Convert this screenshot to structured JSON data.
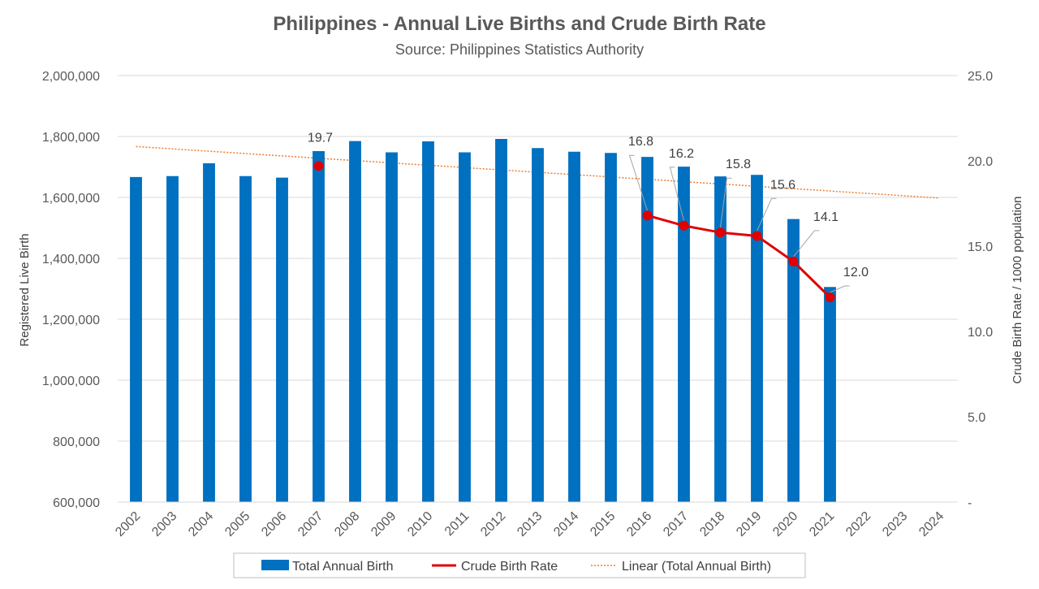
{
  "chart_data": {
    "type": "bar",
    "title": "Philippines - Annual Live Births and Crude Birth Rate",
    "subtitle": "Source: Philippines Statistics Authority",
    "categories": [
      "2002",
      "2003",
      "2004",
      "2005",
      "2006",
      "2007",
      "2008",
      "2009",
      "2010",
      "2011",
      "2012",
      "2013",
      "2014",
      "2015",
      "2016",
      "2017",
      "2018",
      "2019",
      "2020",
      "2021",
      "2022",
      "2023",
      "2024"
    ],
    "y_left": {
      "label": "Registered Live Birth",
      "ylim": [
        600000,
        2000000
      ],
      "ticks": [
        600000,
        800000,
        1000000,
        1200000,
        1400000,
        1600000,
        1800000,
        2000000
      ],
      "tick_labels": [
        "600,000",
        "800,000",
        "1,000,000",
        "1,200,000",
        "1,400,000",
        "1,600,000",
        "1,800,000",
        "2,000,000"
      ]
    },
    "y_right": {
      "label": "Crude Birth Rate / 1000 population",
      "ylim": [
        0,
        25
      ],
      "ticks": [
        0,
        5,
        10,
        15,
        20,
        25
      ],
      "tick_labels": [
        "-",
        "5.0",
        "10.0",
        "15.0",
        "20.0",
        "25.0"
      ]
    },
    "series": [
      {
        "name": "Total Annual Birth",
        "kind": "bar",
        "color": "#0070C0",
        "values": [
          1667000,
          1670000,
          1712000,
          1670000,
          1665000,
          1752000,
          1785000,
          1748000,
          1784000,
          1748000,
          1792000,
          1762000,
          1750000,
          1746000,
          1733000,
          1701000,
          1669000,
          1674000,
          1529000,
          1306000,
          null,
          null,
          null
        ]
      },
      {
        "name": "Crude Birth Rate",
        "kind": "line",
        "color": "#E00000",
        "axis": "right",
        "values": [
          null,
          null,
          null,
          null,
          null,
          19.7,
          null,
          null,
          null,
          null,
          null,
          null,
          null,
          null,
          16.8,
          16.2,
          15.8,
          15.6,
          14.1,
          12.0,
          null,
          null,
          null
        ],
        "data_labels": [
          "",
          "",
          "",
          "",
          "",
          "19.7",
          "",
          "",
          "",
          "",
          "",
          "",
          "",
          "",
          "16.8",
          "16.2",
          "15.8",
          "15.6",
          "14.1",
          "12.0",
          "",
          "",
          ""
        ]
      },
      {
        "name": "Linear (Total Annual Birth)",
        "kind": "trendline",
        "color": "#ED7D31",
        "start": {
          "x": "2002",
          "y": 1767000
        },
        "end": {
          "x": "2024",
          "y": 1598000
        }
      }
    ],
    "grid": true,
    "legend": "bottom"
  }
}
